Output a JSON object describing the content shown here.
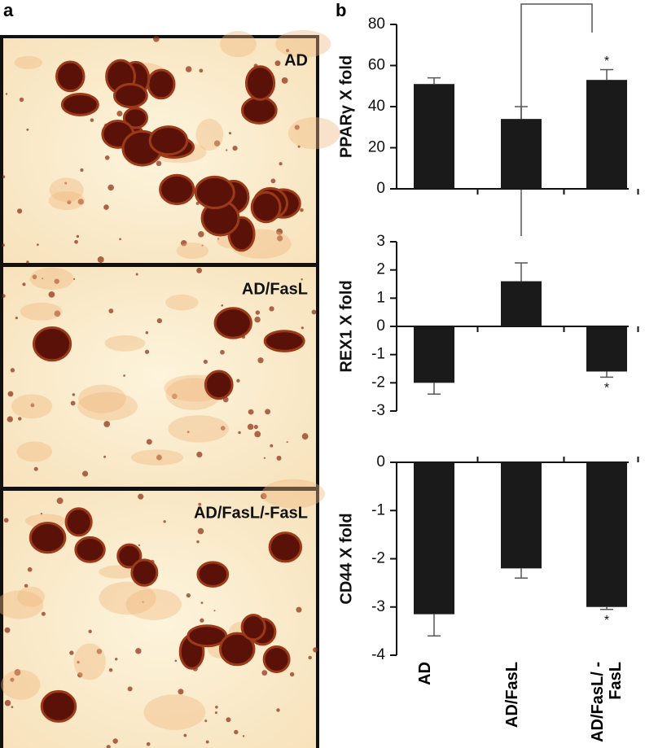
{
  "panel_a": {
    "label": "a",
    "images": [
      "AD",
      "AD/FasL",
      "AD/FasL/-FasL"
    ]
  },
  "panel_b": {
    "label": "b"
  },
  "chart_data": [
    {
      "type": "bar",
      "ylabel": "PPARγ X fold",
      "categories": [
        null,
        null,
        null
      ],
      "values": [
        51,
        34,
        53
      ],
      "errors": [
        3,
        6,
        5
      ],
      "color": "#1a1a1a",
      "ylim": [
        0,
        80
      ],
      "yticks": [
        0,
        20,
        40,
        60,
        80
      ],
      "annotations": [
        "*"
      ]
    },
    {
      "type": "bar",
      "ylabel": "REX1 X fold",
      "categories": [
        null,
        null,
        null
      ],
      "values": [
        -2,
        1.6,
        -1.6
      ],
      "errors": [
        0.4,
        0.65,
        0.2
      ],
      "color": "#1a1a1a",
      "ylim": [
        -3,
        3
      ],
      "yticks": [
        -3,
        -2,
        -1,
        0,
        1,
        2,
        3
      ],
      "annotations": [
        "*"
      ]
    },
    {
      "type": "bar",
      "ylabel": "CD44 X fold",
      "categories": [
        "AD",
        "AD/FasL",
        "AD/FasL/ -FasL"
      ],
      "values": [
        -3.15,
        -2.2,
        -3.0
      ],
      "errors": [
        0.45,
        0.2,
        0.05
      ],
      "color": "#1a1a1a",
      "ylim": [
        -4,
        0
      ],
      "yticks": [
        -4,
        -3,
        -2,
        -1,
        0
      ],
      "annotations": [
        "*"
      ]
    }
  ]
}
